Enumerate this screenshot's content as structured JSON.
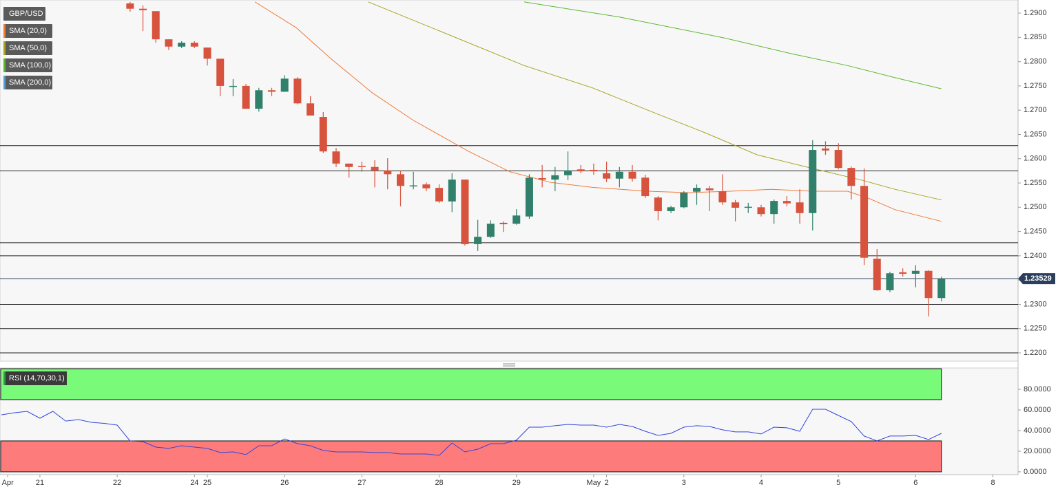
{
  "chart_data": [
    {
      "type": "candlestick",
      "title": "GBP/USD",
      "x": [
        0,
        1,
        2,
        3,
        4,
        5,
        6,
        7,
        8,
        9,
        10,
        11,
        12,
        13,
        14,
        15,
        16,
        17,
        18,
        19,
        20,
        21,
        22,
        23,
        24,
        25,
        26,
        27,
        28,
        29,
        30,
        31,
        32,
        33,
        34,
        35,
        36,
        37,
        38,
        39,
        40,
        41,
        42,
        43,
        44,
        45,
        46,
        47,
        48,
        49,
        50,
        51,
        52,
        53,
        54,
        55,
        56,
        57,
        58,
        59,
        60,
        61,
        62,
        63
      ],
      "open": [
        1.292,
        1.2909,
        1.2904,
        1.2846,
        1.2831,
        1.2839,
        1.2829,
        1.2806,
        1.2749,
        1.275,
        1.2703,
        1.2741,
        1.2738,
        1.2765,
        1.2714,
        1.2686,
        1.2615,
        1.259,
        1.2585,
        1.2583,
        1.2576,
        1.2568,
        1.2543,
        1.2547,
        1.254,
        1.2512,
        1.2557,
        1.2424,
        1.2439,
        1.2468,
        1.2466,
        1.2481,
        1.256,
        1.2557,
        1.2566,
        1.2578,
        1.2577,
        1.257,
        1.2559,
        1.2573,
        1.2561,
        1.252,
        1.2492,
        1.25,
        1.2532,
        1.2539,
        1.2533,
        1.251,
        1.2499,
        1.25,
        1.2486,
        1.2513,
        1.251,
        1.2488,
        1.2621,
        1.2618,
        1.2581,
        1.2544,
        1.2394,
        1.2329,
        1.2366,
        1.2363,
        1.2369,
        1.2313
      ],
      "high": [
        1.2923,
        1.2916,
        1.2904,
        1.2846,
        1.2842,
        1.2842,
        1.2829,
        1.2806,
        1.2764,
        1.2754,
        1.2746,
        1.2746,
        1.2772,
        1.2768,
        1.2729,
        1.2696,
        1.2622,
        1.259,
        1.2594,
        1.2597,
        1.2601,
        1.2576,
        1.2573,
        1.2551,
        1.2547,
        1.257,
        1.2557,
        1.2474,
        1.2473,
        1.2471,
        1.2496,
        1.2568,
        1.2587,
        1.2583,
        1.2615,
        1.2587,
        1.259,
        1.2594,
        1.2583,
        1.2587,
        1.2567,
        1.2523,
        1.2503,
        1.2533,
        1.2547,
        1.2544,
        1.2568,
        1.2515,
        1.2509,
        1.2505,
        1.2516,
        1.2523,
        1.2537,
        1.2638,
        1.2636,
        1.2632,
        1.2584,
        1.258,
        1.2414,
        1.2367,
        1.2374,
        1.2381,
        1.237,
        1.2357
      ],
      "low": [
        1.2903,
        1.2863,
        1.2839,
        1.2824,
        1.2828,
        1.2828,
        1.2792,
        1.2729,
        1.2729,
        1.2703,
        1.2697,
        1.2729,
        1.2738,
        1.2712,
        1.2689,
        1.2612,
        1.2583,
        1.2561,
        1.2573,
        1.2541,
        1.2537,
        1.2502,
        1.2537,
        1.2533,
        1.2509,
        1.249,
        1.2421,
        1.241,
        1.2437,
        1.2449,
        1.2464,
        1.2476,
        1.2541,
        1.2533,
        1.2556,
        1.257,
        1.2567,
        1.2552,
        1.2541,
        1.2553,
        1.2519,
        1.2473,
        1.2488,
        1.2498,
        1.2505,
        1.2492,
        1.2505,
        1.2471,
        1.2488,
        1.2481,
        1.2466,
        1.2502,
        1.2466,
        1.2452,
        1.2608,
        1.2578,
        1.2516,
        1.2381,
        1.2328,
        1.2325,
        1.2357,
        1.2335,
        1.2275,
        1.2306
      ],
      "close": [
        1.2909,
        1.2906,
        1.2846,
        1.2831,
        1.2839,
        1.2831,
        1.2806,
        1.275,
        1.275,
        1.2703,
        1.2741,
        1.2738,
        1.2765,
        1.2714,
        1.2689,
        1.2615,
        1.259,
        1.2583,
        1.2583,
        1.2576,
        1.2568,
        1.2544,
        1.2545,
        1.2539,
        1.2512,
        1.2557,
        1.2424,
        1.2439,
        1.2466,
        1.2465,
        1.2483,
        1.2561,
        1.2557,
        1.2566,
        1.2576,
        1.2574,
        1.2574,
        1.2559,
        1.2573,
        1.2559,
        1.2523,
        1.2492,
        1.25,
        1.253,
        1.254,
        1.2535,
        1.251,
        1.2499,
        1.2501,
        1.2486,
        1.2513,
        1.2508,
        1.2488,
        1.2618,
        1.2617,
        1.2581,
        1.2544,
        1.2396,
        1.2329,
        1.2364,
        1.2363,
        1.2369,
        1.2313,
        1.23529
      ],
      "up_color": "#30806b",
      "down_color": "#d7533d",
      "series": [
        {
          "name": "SMA (20,0)",
          "color": "#f07a3a",
          "x": [
            9.7,
            12.9,
            15.6,
            18.8,
            22.0,
            26.3,
            29.5,
            32.7,
            35.9,
            40.2,
            43.4,
            46.6,
            49.8,
            53.0,
            55.7,
            57.3,
            59.4,
            63.0
          ],
          "values": [
            1.2923,
            1.287,
            1.2806,
            1.2736,
            1.2679,
            1.2615,
            1.2573,
            1.2551,
            1.2541,
            1.2533,
            1.253,
            1.2533,
            1.2537,
            1.2533,
            1.2533,
            1.2519,
            1.2495,
            1.2471
          ]
        },
        {
          "name": "SMA (50,0)",
          "color": "#a8a524",
          "x": [
            18.5,
            24.7,
            30.6,
            35.9,
            40.2,
            44.5,
            48.7,
            53.0,
            56.8,
            59.4,
            63.0
          ],
          "values": [
            1.2923,
            1.2856,
            1.2792,
            1.2746,
            1.27,
            1.2655,
            1.2608,
            1.258,
            1.2556,
            1.2537,
            1.2515
          ]
        },
        {
          "name": "SMA (100,0)",
          "color": "#5cb82e",
          "x": [
            30.6,
            38.0,
            46.1,
            51.4,
            55.7,
            59.4,
            63.0
          ],
          "values": [
            1.2923,
            1.2892,
            1.2849,
            1.2816,
            1.2792,
            1.2767,
            1.2744
          ]
        },
        {
          "name": "SMA (200,0)",
          "color": "#5b9bd5",
          "x": [],
          "values": []
        }
      ],
      "levels": [
        1.2627,
        1.2575,
        1.2427,
        1.24,
        1.23,
        1.225,
        1.22
      ],
      "last_price": 1.23529,
      "xlim": [
        -10.1,
        68.95
      ],
      "ylim": [
        1.2183,
        1.2927
      ],
      "yticks": [
        {
          "value": 1.22,
          "label": "1.2200"
        },
        {
          "value": 1.225,
          "label": "1.2250"
        },
        {
          "value": 1.23,
          "label": "1.2300"
        },
        {
          "value": 1.235,
          "label": "1.2350"
        },
        {
          "value": 1.24,
          "label": "1.2400"
        },
        {
          "value": 1.245,
          "label": "1.2450"
        },
        {
          "value": 1.25,
          "label": "1.2500"
        },
        {
          "value": 1.255,
          "label": "1.2550"
        },
        {
          "value": 1.26,
          "label": "1.2600"
        },
        {
          "value": 1.265,
          "label": "1.2650"
        },
        {
          "value": 1.27,
          "label": "1.2700"
        },
        {
          "value": 1.275,
          "label": "1.2750"
        },
        {
          "value": 1.28,
          "label": "1.2800"
        },
        {
          "value": 1.285,
          "label": "1.2850"
        },
        {
          "value": 1.29,
          "label": "1.2900"
        }
      ],
      "xticks": [
        {
          "value": -9.5,
          "label": "Apr"
        },
        {
          "value": -7,
          "label": "21"
        },
        {
          "value": -1,
          "label": "22"
        },
        {
          "value": 5,
          "label": "24"
        },
        {
          "value": 6,
          "label": "25"
        },
        {
          "value": 12,
          "label": "26"
        },
        {
          "value": 18,
          "label": "27"
        },
        {
          "value": 24,
          "label": "28"
        },
        {
          "value": 30,
          "label": "29"
        },
        {
          "value": 36,
          "label": "May"
        },
        {
          "value": 37,
          "label": "2"
        },
        {
          "value": 43,
          "label": "3"
        },
        {
          "value": 49,
          "label": "4"
        },
        {
          "value": 55,
          "label": "5"
        },
        {
          "value": 61,
          "label": "6"
        },
        {
          "value": 67,
          "label": "8"
        }
      ]
    },
    {
      "type": "line",
      "series": [
        {
          "name": "RSI (14,70,30,1)",
          "color": "#3344dd",
          "x": [
            -10,
            -9,
            -8,
            -7,
            -6,
            -5,
            -4,
            -3,
            -2,
            -1,
            0,
            1,
            2,
            3,
            4,
            5,
            6,
            7,
            8,
            9,
            10,
            11,
            12,
            13,
            14,
            15,
            16,
            17,
            18,
            19,
            20,
            21,
            22,
            23,
            24,
            25,
            26,
            27,
            28,
            29,
            30,
            31,
            32,
            33,
            34,
            35,
            36,
            37,
            38,
            39,
            40,
            41,
            42,
            43,
            44,
            45,
            46,
            47,
            48,
            49,
            50,
            51,
            52,
            53,
            54,
            55,
            56,
            57,
            58,
            59,
            60,
            61,
            62,
            63
          ],
          "values": [
            55.3,
            57.3,
            58.7,
            52,
            58.7,
            49.3,
            50.7,
            48,
            47,
            45.3,
            30,
            29.3,
            24,
            22.7,
            25.3,
            24,
            22.7,
            18.7,
            19.3,
            16.7,
            25.3,
            25.3,
            32,
            27.3,
            25.3,
            20.7,
            19.3,
            19.3,
            19.3,
            18.7,
            18.7,
            17.3,
            17.3,
            17.3,
            16,
            28,
            19.3,
            22,
            27.3,
            27.3,
            30.7,
            43.3,
            43.3,
            44.7,
            46,
            45.3,
            45.3,
            43.3,
            46,
            44,
            39.3,
            35.3,
            37.3,
            43.3,
            44.7,
            44,
            40.7,
            38.7,
            38.7,
            36.7,
            43.3,
            42.7,
            39.3,
            60.7,
            60.7,
            54.7,
            48.7,
            34.7,
            30,
            34.7,
            34.7,
            35.3,
            31.3,
            37.3
          ]
        }
      ],
      "zones": [
        {
          "range": [
            70,
            100
          ],
          "color": "#79fb79"
        },
        {
          "range": [
            0,
            30
          ],
          "color": "#fd7b7b"
        }
      ],
      "xlim": [
        -10.1,
        68.95
      ],
      "ylim": [
        -2.7,
        100.7
      ],
      "yticks": [
        {
          "value": 0,
          "label": "0.0000"
        },
        {
          "value": 20,
          "label": "20.0000"
        },
        {
          "value": 40,
          "label": "40.0000"
        },
        {
          "value": 60,
          "label": "60.0000"
        },
        {
          "value": 80,
          "label": "80.0000"
        }
      ]
    }
  ]
}
